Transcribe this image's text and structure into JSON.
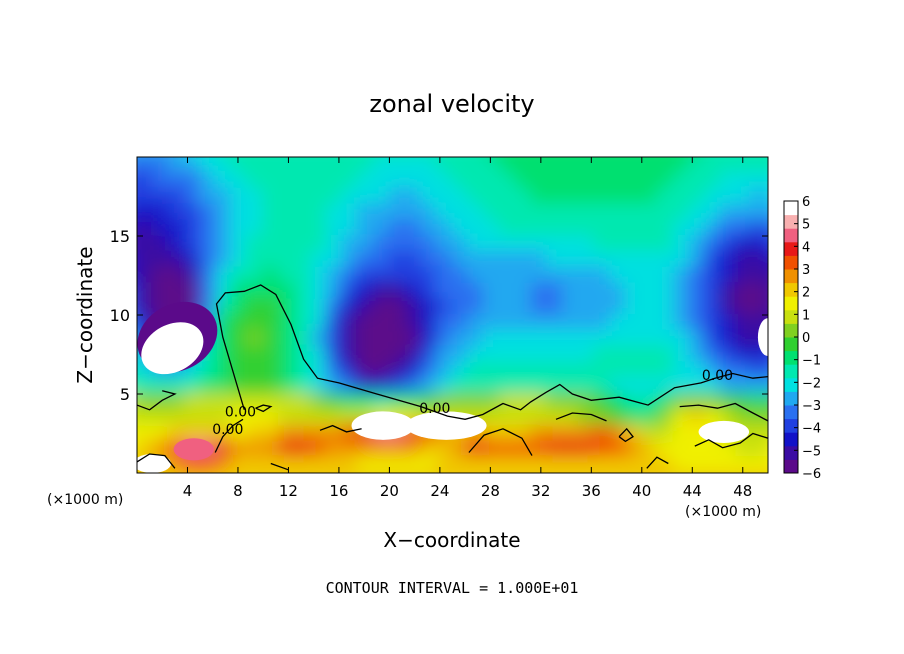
{
  "chart_data": {
    "type": "heatmap",
    "title": "zonal velocity",
    "xlabel": "X−coordinate",
    "ylabel": "Z−coordinate",
    "x_unit_left": "(×1000 m)",
    "x_unit_right": "(×1000 m)",
    "xlim": [
      0,
      50
    ],
    "ylim": [
      0,
      20
    ],
    "x_ticks": [
      {
        "value": 4,
        "label": "4"
      },
      {
        "value": 8,
        "label": "8"
      },
      {
        "value": 12,
        "label": "12"
      },
      {
        "value": 16,
        "label": "16"
      },
      {
        "value": 20,
        "label": "20"
      },
      {
        "value": 24,
        "label": "24"
      },
      {
        "value": 28,
        "label": "28"
      },
      {
        "value": 32,
        "label": "32"
      },
      {
        "value": 36,
        "label": "36"
      },
      {
        "value": 40,
        "label": "40"
      },
      {
        "value": 44,
        "label": "44"
      },
      {
        "value": 48,
        "label": "48"
      }
    ],
    "y_ticks": [
      {
        "value": 5,
        "label": "5"
      },
      {
        "value": 10,
        "label": "10"
      },
      {
        "value": 15,
        "label": "15"
      }
    ],
    "colorbar": {
      "min": -6,
      "max": 6,
      "tick_labels": [
        "6",
        "5",
        "4",
        "3",
        "2",
        "1",
        "0",
        "−1",
        "−2",
        "−3",
        "−4",
        "−5",
        "−6"
      ],
      "colors": [
        "#5b0a8a",
        "#3a0ca3",
        "#1212c8",
        "#2040e0",
        "#2a70f0",
        "#20a8f0",
        "#00e0e0",
        "#00e8b0",
        "#00e070",
        "#30d030",
        "#80d020",
        "#c8e010",
        "#f0f000",
        "#f0c800",
        "#f09000",
        "#f05000",
        "#e81818",
        "#f06080",
        "#f8b0b0",
        "#ffffff"
      ],
      "color_values": [
        -6.0,
        -5.4,
        -4.8,
        -4.2,
        -3.6,
        -3.0,
        -2.4,
        -1.8,
        -1.2,
        -0.6,
        0.0,
        0.6,
        1.2,
        1.8,
        2.4,
        3.0,
        3.6,
        4.2,
        4.8,
        6.0
      ]
    },
    "contour_labels": [
      {
        "text": "0.00",
        "x": 7.2,
        "z": 2.8
      },
      {
        "text": "0.00",
        "x": 8.2,
        "z": 3.9
      },
      {
        "text": "0.00",
        "x": 23.6,
        "z": 4.1
      },
      {
        "text": "0.00",
        "x": 46.0,
        "z": 6.2
      }
    ],
    "footer": "CONTOUR INTERVAL = 1.000E+01"
  }
}
